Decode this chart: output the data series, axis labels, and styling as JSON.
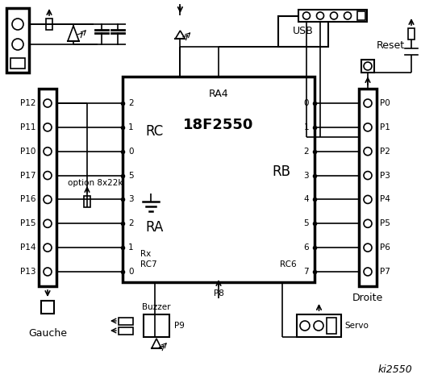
{
  "title": "ki2550",
  "bg_color": "#ffffff",
  "text_color": "#000000",
  "ic_label": "18F2550",
  "ic_sublabel": "RA4",
  "left_port_labels": [
    "P12",
    "P11",
    "P10",
    "P17",
    "P16",
    "P15",
    "P14",
    "P13"
  ],
  "left_rc_pins": [
    "2",
    "1",
    "0",
    "5",
    "3",
    "2",
    "1",
    "0"
  ],
  "left_section_label": "RC",
  "left_section2_label": "RA",
  "right_rb_pins": [
    "0",
    "1",
    "2",
    "3",
    "4",
    "5",
    "6",
    "7"
  ],
  "right_section_label": "RB",
  "right_port_labels": [
    "P0",
    "P1",
    "P2",
    "P3",
    "P4",
    "P5",
    "P6",
    "P7"
  ],
  "option_text": "option 8x22k",
  "usb_text": "USB",
  "reset_text": "Reset",
  "gauche_text": "Gauche",
  "droite_text": "Droite",
  "buzzer_text": "Buzzer",
  "servo_text": "Servo",
  "p9_text": "P9",
  "p8_text": "P8",
  "rx_text": "Rx",
  "rc7_text": "RC7",
  "rc6_text": "RC6"
}
